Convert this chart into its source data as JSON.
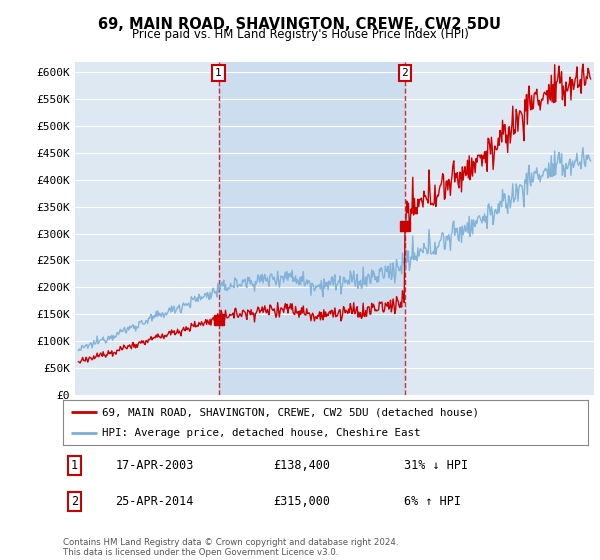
{
  "title": "69, MAIN ROAD, SHAVINGTON, CREWE, CW2 5DU",
  "subtitle": "Price paid vs. HM Land Registry's House Price Index (HPI)",
  "yticks": [
    0,
    50000,
    100000,
    150000,
    200000,
    250000,
    300000,
    350000,
    400000,
    450000,
    500000,
    550000,
    600000
  ],
  "ytick_labels": [
    "£0",
    "£50K",
    "£100K",
    "£150K",
    "£200K",
    "£250K",
    "£300K",
    "£350K",
    "£400K",
    "£450K",
    "£500K",
    "£550K",
    "£600K"
  ],
  "xlim_start": 1994.8,
  "xlim_end": 2025.5,
  "ylim_min": 0,
  "ylim_max": 620000,
  "sale1_x": 2003.29,
  "sale1_y": 138400,
  "sale2_x": 2014.32,
  "sale2_y": 315000,
  "sale1_date": "17-APR-2003",
  "sale1_price": "£138,400",
  "sale1_hpi": "31% ↓ HPI",
  "sale2_date": "25-APR-2014",
  "sale2_price": "£315,000",
  "sale2_hpi": "6% ↑ HPI",
  "hpi_color": "#7aaed6",
  "price_color": "#cc0000",
  "plot_bg_color": "#dde8f3",
  "highlight_bg_color": "#ccddf0",
  "legend_label_price": "69, MAIN ROAD, SHAVINGTON, CREWE, CW2 5DU (detached house)",
  "legend_label_hpi": "HPI: Average price, detached house, Cheshire East",
  "footnote": "Contains HM Land Registry data © Crown copyright and database right 2024.\nThis data is licensed under the Open Government Licence v3.0.",
  "fig_width": 6.0,
  "fig_height": 5.6,
  "dpi": 100
}
